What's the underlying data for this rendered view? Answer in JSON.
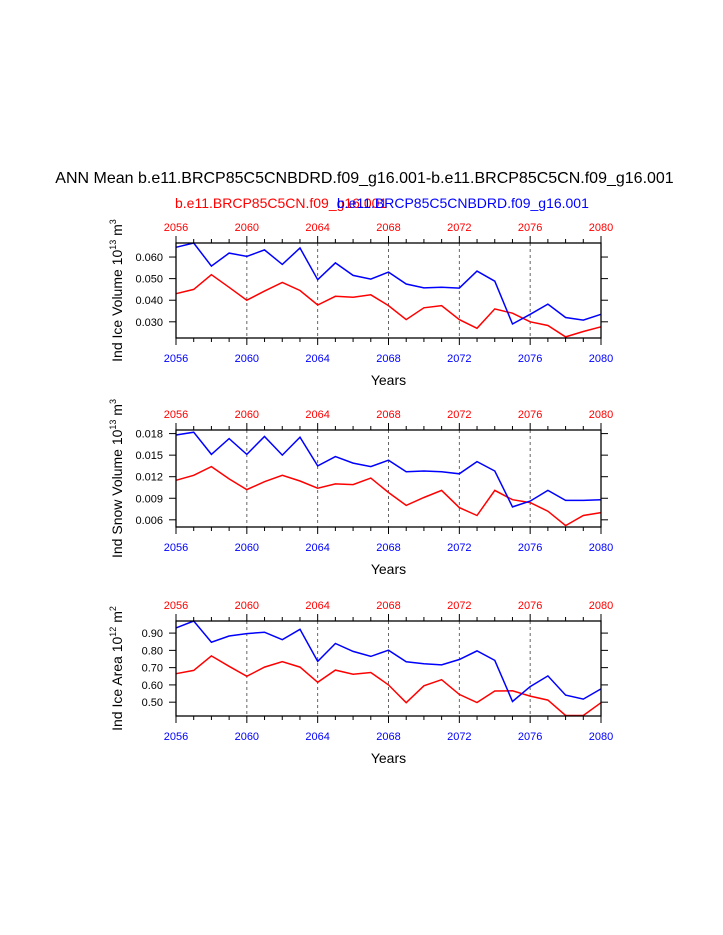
{
  "title": "ANN Mean b.e11.BRCP85C5CNBDRD.f09_g16.001-b.e11.BRCP85C5CN.f09_g16.001",
  "legend": [
    {
      "label": "b.e11.BRCP85C5CN.f09_g16.001",
      "color": "#ff0000"
    },
    {
      "label": "b.e11.BRCP85C5CNBDRD.f09_g16.001",
      "color": "#0000ff"
    }
  ],
  "chart_data": [
    {
      "type": "line",
      "title": "",
      "xlabel": "Years",
      "ylabel_main": "Ind Ice Volume 10",
      "ylabel_exp": "13",
      "ylabel_unit": " m",
      "ylabel_unit_exp": "3",
      "x": [
        2056,
        2057,
        2058,
        2059,
        2060,
        2061,
        2062,
        2063,
        2064,
        2065,
        2066,
        2067,
        2068,
        2069,
        2070,
        2071,
        2072,
        2073,
        2074,
        2075,
        2076,
        2077,
        2078,
        2079,
        2080
      ],
      "xlim": [
        2056,
        2080
      ],
      "xticks": [
        "2056",
        "2060",
        "2064",
        "2068",
        "2072",
        "2076",
        "2080"
      ],
      "ylim": [
        0.0225,
        0.0665
      ],
      "yticks": [
        "0.030",
        "0.040",
        "0.050",
        "0.060"
      ],
      "grid": "dashed vertical lines at 2060, 2064, 2068, 2072, 2076",
      "series": [
        {
          "name": "b.e11.BRCP85C5CN.f09_g16.001",
          "color": "#ff0000",
          "values": [
            0.043,
            0.045,
            0.0518,
            0.046,
            0.04,
            0.0442,
            0.0482,
            0.0445,
            0.0378,
            0.0418,
            0.0414,
            0.0425,
            0.0375,
            0.031,
            0.0365,
            0.0375,
            0.031,
            0.027,
            0.036,
            0.034,
            0.03,
            0.0283,
            0.023,
            0.0255,
            0.0277
          ]
        },
        {
          "name": "b.e11.BRCP85C5CNBDRD.f09_g16.001",
          "color": "#0000ff",
          "values": [
            0.0645,
            0.0665,
            0.0558,
            0.0618,
            0.0603,
            0.0633,
            0.0566,
            0.0642,
            0.0495,
            0.0573,
            0.0515,
            0.0498,
            0.053,
            0.0475,
            0.0457,
            0.046,
            0.0456,
            0.0535,
            0.0488,
            0.029,
            0.0335,
            0.0382,
            0.032,
            0.0308,
            0.0335
          ]
        }
      ]
    },
    {
      "type": "line",
      "title": "",
      "xlabel": "Years",
      "ylabel_main": "Ind Snow Volume 10",
      "ylabel_exp": "13",
      "ylabel_unit": " m",
      "ylabel_unit_exp": "3",
      "x": [
        2056,
        2057,
        2058,
        2059,
        2060,
        2061,
        2062,
        2063,
        2064,
        2065,
        2066,
        2067,
        2068,
        2069,
        2070,
        2071,
        2072,
        2073,
        2074,
        2075,
        2076,
        2077,
        2078,
        2079,
        2080
      ],
      "xlim": [
        2056,
        2080
      ],
      "xticks": [
        "2056",
        "2060",
        "2064",
        "2068",
        "2072",
        "2076",
        "2080"
      ],
      "ylim": [
        0.005,
        0.0185
      ],
      "yticks": [
        "0.006",
        "0.009",
        "0.012",
        "0.015",
        "0.018"
      ],
      "grid": "dashed vertical lines at 2060, 2064, 2068, 2072, 2076",
      "series": [
        {
          "name": "b.e11.BRCP85C5CN.f09_g16.001",
          "color": "#ff0000",
          "values": [
            0.0115,
            0.0122,
            0.0134,
            0.0117,
            0.0102,
            0.0113,
            0.0122,
            0.0114,
            0.0104,
            0.011,
            0.0109,
            0.0118,
            0.0098,
            0.008,
            0.0091,
            0.0101,
            0.0077,
            0.0066,
            0.0101,
            0.0088,
            0.0084,
            0.0072,
            0.0052,
            0.0066,
            0.007
          ]
        },
        {
          "name": "b.e11.BRCP85C5CNBDRD.f09_g16.001",
          "color": "#0000ff",
          "values": [
            0.0178,
            0.0182,
            0.0151,
            0.0173,
            0.0151,
            0.0176,
            0.015,
            0.0175,
            0.0135,
            0.0148,
            0.0139,
            0.0134,
            0.0143,
            0.0127,
            0.0128,
            0.0127,
            0.0124,
            0.0141,
            0.0128,
            0.0078,
            0.0086,
            0.0101,
            0.0087,
            0.0087,
            0.0088
          ]
        }
      ]
    },
    {
      "type": "line",
      "title": "",
      "xlabel": "Years",
      "ylabel_main": "Ind Ice Area 10",
      "ylabel_exp": "12",
      "ylabel_unit": " m",
      "ylabel_unit_exp": "2",
      "x": [
        2056,
        2057,
        2058,
        2059,
        2060,
        2061,
        2062,
        2063,
        2064,
        2065,
        2066,
        2067,
        2068,
        2069,
        2070,
        2071,
        2072,
        2073,
        2074,
        2075,
        2076,
        2077,
        2078,
        2079,
        2080
      ],
      "xlim": [
        2056,
        2080
      ],
      "xticks": [
        "2056",
        "2060",
        "2064",
        "2068",
        "2072",
        "2076",
        "2080"
      ],
      "ylim": [
        0.42,
        0.97
      ],
      "yticks": [
        "0.50",
        "0.60",
        "0.70",
        "0.80",
        "0.90"
      ],
      "grid": "dashed vertical lines at 2060, 2064, 2068, 2072, 2076",
      "series": [
        {
          "name": "b.e11.BRCP85C5CN.f09_g16.001",
          "color": "#ff0000",
          "values": [
            0.665,
            0.684,
            0.768,
            0.708,
            0.65,
            0.703,
            0.735,
            0.703,
            0.615,
            0.686,
            0.662,
            0.672,
            0.6,
            0.497,
            0.595,
            0.63,
            0.545,
            0.498,
            0.565,
            0.566,
            0.535,
            0.512,
            0.423,
            0.423,
            0.497
          ]
        },
        {
          "name": "b.e11.BRCP85C5CNBDRD.f09_g16.001",
          "color": "#0000ff",
          "values": [
            0.93,
            0.97,
            0.847,
            0.883,
            0.897,
            0.905,
            0.862,
            0.922,
            0.736,
            0.84,
            0.794,
            0.765,
            0.801,
            0.734,
            0.723,
            0.716,
            0.747,
            0.797,
            0.742,
            0.504,
            0.59,
            0.652,
            0.541,
            0.518,
            0.577
          ]
        }
      ]
    }
  ]
}
